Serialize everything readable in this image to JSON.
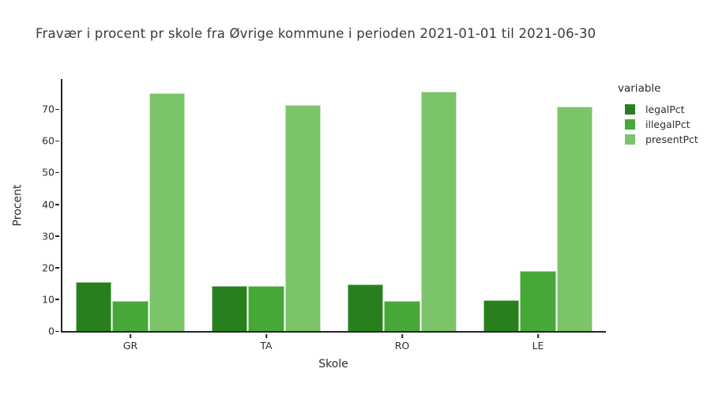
{
  "title": "Fravær i procent pr skole fra Øvrige kommune i perioden 2021-01-01 til 2021-06-30",
  "chart_data": {
    "type": "bar",
    "mode": "grouped",
    "title": "Fravær i procent pr skole fra Øvrige kommune i perioden 2021-01-01 til 2021-06-30",
    "categories": [
      "GR",
      "TA",
      "RO",
      "LE"
    ],
    "series": [
      {
        "name": "legalPct",
        "color": "#27801d",
        "values": [
          15.5,
          14.3,
          14.7,
          9.7
        ]
      },
      {
        "name": "illegalPct",
        "color": "#46a837",
        "values": [
          9.5,
          14.1,
          9.4,
          19.0
        ]
      },
      {
        "name": "presentPct",
        "color": "#7cc46a",
        "values": [
          75.0,
          71.3,
          75.5,
          70.8
        ]
      }
    ],
    "xlabel": "Skole",
    "ylabel": "Procent",
    "yticks": [
      0,
      10,
      20,
      30,
      40,
      50,
      60,
      70
    ],
    "ylim": [
      0,
      79.5
    ],
    "grid": false,
    "background": "#ffffff",
    "legend": {
      "title": "variable",
      "position": "right",
      "entries": [
        "legalPct",
        "illegalPct",
        "presentPct"
      ]
    }
  },
  "colors": {
    "axis_line": "#242424",
    "tick_text": "#2e2e2e",
    "title_text": "#3b3b3b",
    "background": "#ffffff"
  }
}
